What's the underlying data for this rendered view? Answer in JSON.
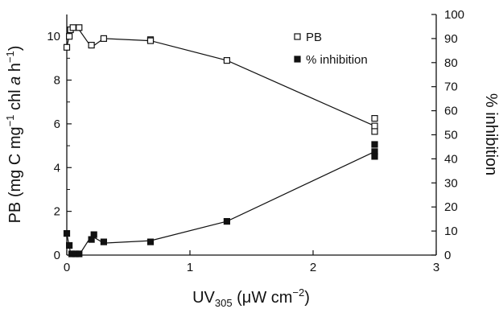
{
  "chart_data": {
    "type": "line",
    "xlabel": {
      "main": "UV",
      "sub": "305",
      "rest": " (μW cm",
      "sup": "−2",
      "end": ")"
    },
    "ylabel_left": {
      "main": "PB (mg C mg",
      "sup1": "−1",
      "mid": " chl ",
      "italic": "a",
      "rest": " h",
      "sup2": "−1",
      "end": ")"
    },
    "ylabel_right": "% inhibition",
    "xlim": [
      0,
      3
    ],
    "ylim_left": [
      0,
      11
    ],
    "ylim_right": [
      0,
      100
    ],
    "x_ticks": [
      "0",
      "1",
      "2",
      "3"
    ],
    "y_ticks_left": [
      "0",
      "2",
      "4",
      "6",
      "8",
      "10"
    ],
    "y_ticks_right": [
      "0",
      "10",
      "20",
      "30",
      "40",
      "50",
      "60",
      "70",
      "80",
      "90",
      "100"
    ],
    "legend_position": "top-right",
    "series": [
      {
        "name": "PB",
        "axis": "left",
        "marker": "open-square",
        "color": "#111111",
        "line_x": [
          0.0,
          0.03,
          0.1,
          0.2,
          0.3,
          0.68,
          1.3,
          2.5
        ],
        "line_y": [
          9.5,
          10.3,
          10.3,
          9.5,
          9.9,
          9.8,
          8.9,
          5.9
        ],
        "points": [
          [
            0.0,
            9.5
          ],
          [
            0.02,
            10.0
          ],
          [
            0.03,
            10.3
          ],
          [
            0.05,
            10.4
          ],
          [
            0.1,
            10.4
          ],
          [
            0.2,
            9.6
          ],
          [
            0.3,
            9.9
          ],
          [
            0.68,
            9.85
          ],
          [
            0.68,
            9.8
          ],
          [
            1.3,
            8.9
          ],
          [
            2.5,
            6.25
          ],
          [
            2.5,
            5.9
          ],
          [
            2.5,
            5.65
          ]
        ]
      },
      {
        "name": "% inhibition",
        "axis": "right",
        "marker": "filled-square",
        "color": "#111111",
        "line_x": [
          0.0,
          0.03,
          0.1,
          0.2,
          0.3,
          0.68,
          1.3,
          2.5
        ],
        "line_y": [
          9,
          1,
          0,
          8,
          5,
          6,
          14,
          43
        ],
        "points": [
          [
            0.0,
            9
          ],
          [
            0.02,
            4
          ],
          [
            0.04,
            0.5
          ],
          [
            0.07,
            0.5
          ],
          [
            0.1,
            0.5
          ],
          [
            0.2,
            6.5
          ],
          [
            0.22,
            8.5
          ],
          [
            0.3,
            5.5
          ],
          [
            0.68,
            5.5
          ],
          [
            1.3,
            14
          ],
          [
            2.5,
            46
          ],
          [
            2.5,
            43
          ],
          [
            2.5,
            41
          ]
        ]
      }
    ]
  }
}
